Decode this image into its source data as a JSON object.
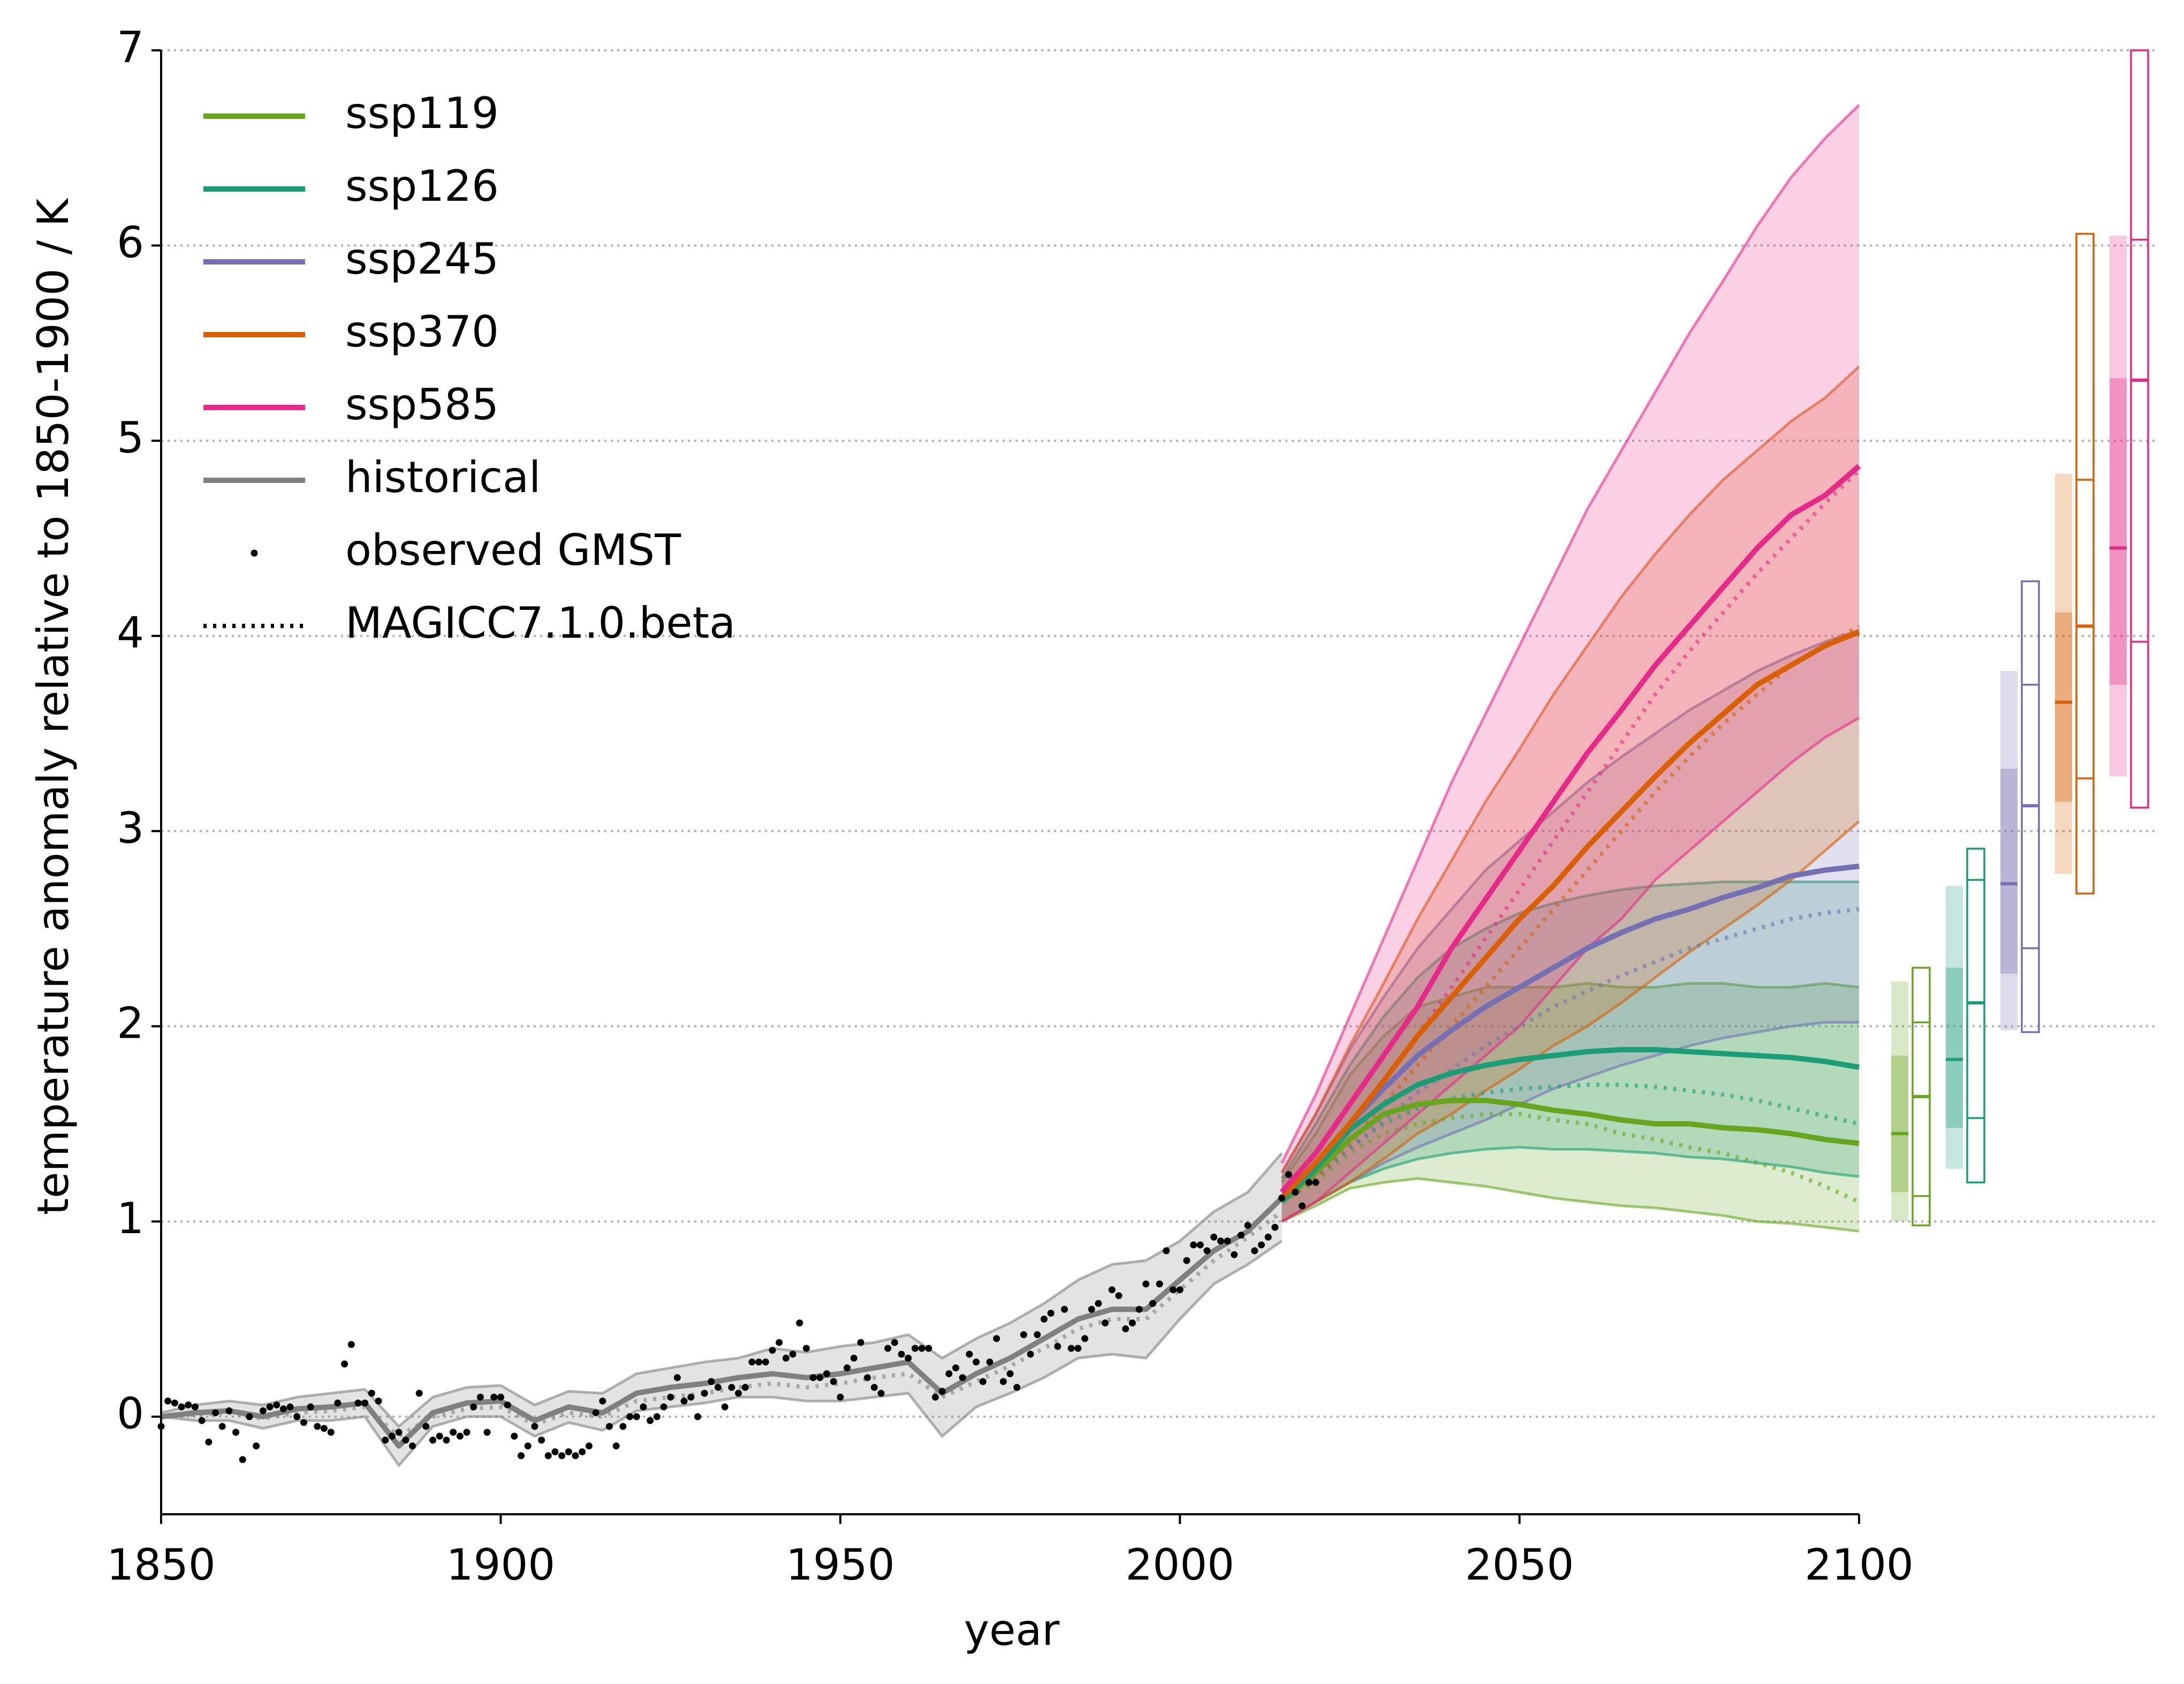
{
  "chart_data": {
    "type": "line",
    "xlabel": "year",
    "ylabel": "temperature anomaly relative to 1850-1900 / K",
    "xlim": [
      1850,
      2100
    ],
    "ylim": [
      -0.5,
      7
    ],
    "xticks": [
      1850,
      1900,
      1950,
      2000,
      2050,
      2100
    ],
    "yticks": [
      0,
      1,
      2,
      3,
      4,
      5,
      6,
      7
    ],
    "grid": true,
    "legend": "upper left",
    "dotted_legend": "MAGICC7.1.0.beta",
    "series": [
      {
        "name": "ssp119",
        "color": "#66a61e",
        "x": [
          2015,
          2020,
          2025,
          2030,
          2035,
          2040,
          2045,
          2050,
          2055,
          2060,
          2065,
          2070,
          2075,
          2080,
          2085,
          2090,
          2095,
          2100
        ],
        "values": [
          1.1,
          1.25,
          1.42,
          1.55,
          1.6,
          1.62,
          1.62,
          1.6,
          1.57,
          1.55,
          1.52,
          1.5,
          1.5,
          1.48,
          1.47,
          1.45,
          1.42,
          1.4
        ],
        "lower": [
          1.0,
          1.08,
          1.17,
          1.2,
          1.22,
          1.2,
          1.18,
          1.15,
          1.12,
          1.1,
          1.08,
          1.07,
          1.05,
          1.03,
          1.0,
          0.99,
          0.97,
          0.95
        ],
        "upper": [
          1.2,
          1.45,
          1.75,
          1.95,
          2.1,
          2.15,
          2.2,
          2.2,
          2.2,
          2.22,
          2.2,
          2.2,
          2.22,
          2.22,
          2.2,
          2.2,
          2.22,
          2.2
        ],
        "model_values": [
          1.1,
          1.2,
          1.35,
          1.45,
          1.5,
          1.53,
          1.55,
          1.55,
          1.52,
          1.5,
          1.45,
          1.42,
          1.38,
          1.35,
          1.3,
          1.25,
          1.18,
          1.1
        ],
        "bar": {
          "low": 1.0,
          "q1": 1.15,
          "median": 1.45,
          "q3": 1.85,
          "high": 2.23
        },
        "box": {
          "low": 0.98,
          "q1": 1.13,
          "median": 1.64,
          "q3": 2.02,
          "high": 2.3
        }
      },
      {
        "name": "ssp126",
        "color": "#1b9e77",
        "x": [
          2015,
          2020,
          2025,
          2030,
          2035,
          2040,
          2045,
          2050,
          2055,
          2060,
          2065,
          2070,
          2075,
          2080,
          2085,
          2090,
          2095,
          2100
        ],
        "values": [
          1.1,
          1.27,
          1.47,
          1.6,
          1.7,
          1.76,
          1.8,
          1.83,
          1.85,
          1.87,
          1.88,
          1.88,
          1.87,
          1.86,
          1.85,
          1.84,
          1.82,
          1.79
        ],
        "lower": [
          1.0,
          1.1,
          1.2,
          1.27,
          1.32,
          1.35,
          1.37,
          1.38,
          1.37,
          1.37,
          1.36,
          1.35,
          1.33,
          1.32,
          1.3,
          1.28,
          1.25,
          1.23
        ],
        "upper": [
          1.22,
          1.5,
          1.8,
          2.05,
          2.25,
          2.4,
          2.5,
          2.58,
          2.63,
          2.67,
          2.7,
          2.72,
          2.73,
          2.74,
          2.74,
          2.74,
          2.74,
          2.74
        ],
        "model_values": [
          1.1,
          1.22,
          1.38,
          1.5,
          1.58,
          1.63,
          1.66,
          1.68,
          1.69,
          1.7,
          1.7,
          1.69,
          1.67,
          1.65,
          1.62,
          1.58,
          1.54,
          1.5
        ],
        "bar": {
          "low": 1.27,
          "q1": 1.48,
          "median": 1.83,
          "q3": 2.3,
          "high": 2.72
        },
        "box": {
          "low": 1.2,
          "q1": 1.53,
          "median": 2.12,
          "q3": 2.75,
          "high": 2.91
        }
      },
      {
        "name": "ssp245",
        "color": "#7570b3",
        "x": [
          2015,
          2020,
          2025,
          2030,
          2035,
          2040,
          2045,
          2050,
          2055,
          2060,
          2065,
          2070,
          2075,
          2080,
          2085,
          2090,
          2095,
          2100
        ],
        "values": [
          1.12,
          1.3,
          1.5,
          1.68,
          1.85,
          1.98,
          2.1,
          2.2,
          2.3,
          2.4,
          2.48,
          2.55,
          2.6,
          2.66,
          2.71,
          2.77,
          2.8,
          2.82
        ],
        "lower": [
          1.0,
          1.1,
          1.2,
          1.3,
          1.38,
          1.45,
          1.52,
          1.6,
          1.68,
          1.74,
          1.8,
          1.85,
          1.9,
          1.94,
          1.97,
          2.0,
          2.02,
          2.02
        ],
        "upper": [
          1.25,
          1.55,
          1.88,
          2.15,
          2.4,
          2.6,
          2.8,
          2.95,
          3.1,
          3.25,
          3.38,
          3.5,
          3.62,
          3.72,
          3.82,
          3.9,
          3.97,
          4.03
        ],
        "model_values": [
          1.1,
          1.22,
          1.37,
          1.52,
          1.66,
          1.78,
          1.9,
          2.0,
          2.1,
          2.18,
          2.26,
          2.33,
          2.4,
          2.45,
          2.5,
          2.55,
          2.58,
          2.6
        ],
        "bar": {
          "low": 1.98,
          "q1": 2.27,
          "median": 2.73,
          "q3": 3.32,
          "high": 3.82
        },
        "box": {
          "low": 1.97,
          "q1": 2.4,
          "median": 3.13,
          "q3": 3.75,
          "high": 4.28
        }
      },
      {
        "name": "ssp370",
        "color": "#d95f02",
        "x": [
          2015,
          2020,
          2025,
          2030,
          2035,
          2040,
          2045,
          2050,
          2055,
          2060,
          2065,
          2070,
          2075,
          2080,
          2085,
          2090,
          2095,
          2100
        ],
        "values": [
          1.12,
          1.3,
          1.5,
          1.72,
          1.95,
          2.15,
          2.35,
          2.55,
          2.72,
          2.92,
          3.1,
          3.28,
          3.45,
          3.6,
          3.75,
          3.85,
          3.95,
          4.02
        ],
        "lower": [
          1.0,
          1.1,
          1.2,
          1.32,
          1.45,
          1.55,
          1.67,
          1.78,
          1.9,
          2.0,
          2.12,
          2.25,
          2.38,
          2.5,
          2.62,
          2.75,
          2.9,
          3.05
        ],
        "upper": [
          1.25,
          1.55,
          1.9,
          2.22,
          2.55,
          2.85,
          3.15,
          3.42,
          3.7,
          3.95,
          4.2,
          4.42,
          4.62,
          4.8,
          4.95,
          5.1,
          5.22,
          5.38
        ],
        "model_values": [
          1.1,
          1.22,
          1.4,
          1.6,
          1.8,
          2.0,
          2.2,
          2.4,
          2.6,
          2.8,
          3.0,
          3.2,
          3.38,
          3.55,
          3.7,
          3.85,
          3.95,
          4.05
        ],
        "bar": {
          "low": 2.78,
          "q1": 3.15,
          "median": 3.66,
          "q3": 4.12,
          "high": 4.83
        },
        "box": {
          "low": 2.68,
          "q1": 3.27,
          "median": 4.05,
          "q3": 4.8,
          "high": 6.06
        }
      },
      {
        "name": "ssp585",
        "color": "#e7298a",
        "x": [
          2015,
          2020,
          2025,
          2030,
          2035,
          2040,
          2045,
          2050,
          2055,
          2060,
          2065,
          2070,
          2075,
          2080,
          2085,
          2090,
          2095,
          2100
        ],
        "values": [
          1.15,
          1.35,
          1.6,
          1.85,
          2.1,
          2.4,
          2.65,
          2.9,
          3.15,
          3.4,
          3.62,
          3.85,
          4.05,
          4.25,
          4.45,
          4.62,
          4.72,
          4.87
        ],
        "lower": [
          1.0,
          1.1,
          1.25,
          1.4,
          1.55,
          1.7,
          1.85,
          2.0,
          2.2,
          2.4,
          2.55,
          2.75,
          2.9,
          3.05,
          3.2,
          3.35,
          3.48,
          3.58
        ],
        "upper": [
          1.3,
          1.65,
          2.05,
          2.45,
          2.85,
          3.25,
          3.6,
          3.95,
          4.3,
          4.65,
          4.95,
          5.25,
          5.55,
          5.82,
          6.1,
          6.35,
          6.55,
          6.72
        ],
        "model_values": [
          1.12,
          1.28,
          1.5,
          1.72,
          1.95,
          2.2,
          2.45,
          2.7,
          2.95,
          3.2,
          3.45,
          3.7,
          3.92,
          4.12,
          4.32,
          4.5,
          4.68,
          4.85
        ],
        "bar": {
          "low": 3.28,
          "q1": 3.75,
          "median": 4.45,
          "q3": 5.32,
          "high": 6.05
        },
        "box": {
          "low": 3.12,
          "q1": 3.97,
          "median": 5.31,
          "q3": 6.03,
          "high": 7.0
        }
      },
      {
        "name": "historical",
        "color": "#808080",
        "x": [
          1850,
          1855,
          1860,
          1865,
          1870,
          1875,
          1880,
          1885,
          1890,
          1895,
          1900,
          1905,
          1910,
          1915,
          1920,
          1925,
          1930,
          1935,
          1940,
          1945,
          1950,
          1955,
          1960,
          1965,
          1970,
          1975,
          1980,
          1985,
          1990,
          1995,
          2000,
          2005,
          2010,
          2015
        ],
        "values": [
          0.0,
          0.02,
          0.03,
          0.0,
          0.04,
          0.05,
          0.07,
          -0.15,
          0.02,
          0.07,
          0.08,
          -0.02,
          0.05,
          0.02,
          0.12,
          0.15,
          0.17,
          0.2,
          0.22,
          0.2,
          0.22,
          0.25,
          0.28,
          0.12,
          0.22,
          0.3,
          0.4,
          0.5,
          0.55,
          0.55,
          0.7,
          0.85,
          0.95,
          1.12
        ],
        "lower": [
          0.0,
          -0.02,
          -0.02,
          -0.06,
          -0.02,
          -0.02,
          0.0,
          -0.25,
          -0.05,
          0.0,
          0.0,
          -0.1,
          -0.03,
          -0.07,
          0.03,
          0.05,
          0.07,
          0.1,
          0.1,
          0.08,
          0.08,
          0.1,
          0.12,
          -0.1,
          0.05,
          0.12,
          0.2,
          0.3,
          0.32,
          0.3,
          0.5,
          0.68,
          0.78,
          0.9
        ],
        "upper": [
          0.02,
          0.06,
          0.08,
          0.06,
          0.1,
          0.12,
          0.14,
          -0.05,
          0.1,
          0.15,
          0.16,
          0.06,
          0.13,
          0.12,
          0.22,
          0.25,
          0.28,
          0.3,
          0.35,
          0.33,
          0.36,
          0.38,
          0.42,
          0.3,
          0.4,
          0.48,
          0.58,
          0.7,
          0.78,
          0.8,
          0.9,
          1.05,
          1.15,
          1.35
        ],
        "model_values": [
          0.0,
          0.01,
          0.02,
          -0.01,
          0.02,
          0.03,
          0.05,
          -0.1,
          0.0,
          0.04,
          0.05,
          -0.04,
          0.02,
          0.0,
          0.08,
          0.1,
          0.12,
          0.15,
          0.17,
          0.15,
          0.17,
          0.2,
          0.22,
          0.1,
          0.18,
          0.26,
          0.35,
          0.45,
          0.5,
          0.5,
          0.65,
          0.8,
          0.92,
          1.05
        ]
      }
    ],
    "observed": {
      "name": "observed GMST",
      "color": "#000000",
      "x": [
        1850,
        1851,
        1852,
        1853,
        1854,
        1855,
        1856,
        1857,
        1858,
        1859,
        1860,
        1861,
        1862,
        1863,
        1864,
        1865,
        1866,
        1867,
        1868,
        1869,
        1870,
        1871,
        1872,
        1873,
        1874,
        1875,
        1876,
        1877,
        1878,
        1879,
        1880,
        1881,
        1882,
        1883,
        1884,
        1885,
        1886,
        1887,
        1888,
        1889,
        1890,
        1891,
        1892,
        1893,
        1894,
        1895,
        1896,
        1897,
        1898,
        1899,
        1900,
        1901,
        1902,
        1903,
        1904,
        1905,
        1906,
        1907,
        1908,
        1909,
        1910,
        1911,
        1912,
        1913,
        1914,
        1915,
        1916,
        1917,
        1918,
        1919,
        1920,
        1921,
        1922,
        1923,
        1924,
        1925,
        1926,
        1927,
        1928,
        1929,
        1930,
        1931,
        1932,
        1933,
        1934,
        1935,
        1936,
        1937,
        1938,
        1939,
        1940,
        1941,
        1942,
        1943,
        1944,
        1945,
        1946,
        1947,
        1948,
        1949,
        1950,
        1951,
        1952,
        1953,
        1954,
        1955,
        1956,
        1957,
        1958,
        1959,
        1960,
        1961,
        1962,
        1963,
        1964,
        1965,
        1966,
        1967,
        1968,
        1969,
        1970,
        1971,
        1972,
        1973,
        1974,
        1975,
        1976,
        1977,
        1978,
        1979,
        1980,
        1981,
        1982,
        1983,
        1984,
        1985,
        1986,
        1987,
        1988,
        1989,
        1990,
        1991,
        1992,
        1993,
        1994,
        1995,
        1996,
        1997,
        1998,
        1999,
        2000,
        2001,
        2002,
        2003,
        2004,
        2005,
        2006,
        2007,
        2008,
        2009,
        2010,
        2011,
        2012,
        2013,
        2014,
        2015,
        2016,
        2017,
        2018,
        2019,
        2020
      ],
      "values": [
        -0.05,
        0.08,
        0.07,
        0.05,
        0.06,
        0.05,
        -0.02,
        -0.13,
        0.02,
        -0.05,
        0.03,
        -0.08,
        -0.22,
        0.0,
        -0.15,
        0.03,
        0.05,
        0.06,
        0.04,
        0.05,
        0.0,
        -0.03,
        0.05,
        -0.05,
        -0.06,
        -0.08,
        0.07,
        0.27,
        0.37,
        0.07,
        0.07,
        0.12,
        0.08,
        -0.12,
        -0.1,
        -0.08,
        -0.12,
        -0.15,
        0.12,
        -0.05,
        -0.12,
        -0.1,
        -0.12,
        -0.08,
        -0.1,
        -0.08,
        0.05,
        0.1,
        -0.08,
        0.1,
        0.1,
        0.06,
        -0.1,
        -0.2,
        -0.15,
        -0.05,
        -0.12,
        -0.2,
        -0.18,
        -0.2,
        -0.18,
        -0.2,
        -0.18,
        -0.15,
        0.02,
        0.08,
        -0.05,
        -0.15,
        -0.05,
        0.0,
        0.0,
        0.05,
        -0.02,
        0.0,
        0.05,
        0.1,
        0.2,
        0.08,
        0.1,
        0.0,
        0.12,
        0.18,
        0.15,
        0.05,
        0.15,
        0.12,
        0.15,
        0.28,
        0.28,
        0.28,
        0.34,
        0.38,
        0.3,
        0.32,
        0.48,
        0.35,
        0.2,
        0.2,
        0.22,
        0.18,
        0.1,
        0.25,
        0.3,
        0.38,
        0.2,
        0.15,
        0.12,
        0.35,
        0.38,
        0.32,
        0.3,
        0.35,
        0.35,
        0.35,
        0.1,
        0.13,
        0.22,
        0.25,
        0.2,
        0.32,
        0.28,
        0.18,
        0.28,
        0.4,
        0.18,
        0.22,
        0.15,
        0.42,
        0.32,
        0.42,
        0.5,
        0.53,
        0.36,
        0.55,
        0.35,
        0.35,
        0.4,
        0.55,
        0.58,
        0.48,
        0.65,
        0.62,
        0.45,
        0.48,
        0.55,
        0.68,
        0.58,
        0.68,
        0.85,
        0.65,
        0.65,
        0.8,
        0.88,
        0.88,
        0.85,
        0.92,
        0.9,
        0.9,
        0.83,
        0.93,
        0.98,
        0.85,
        0.88,
        0.92,
        0.97,
        1.12,
        1.24,
        1.15,
        1.08,
        1.2,
        1.2
      ]
    }
  }
}
